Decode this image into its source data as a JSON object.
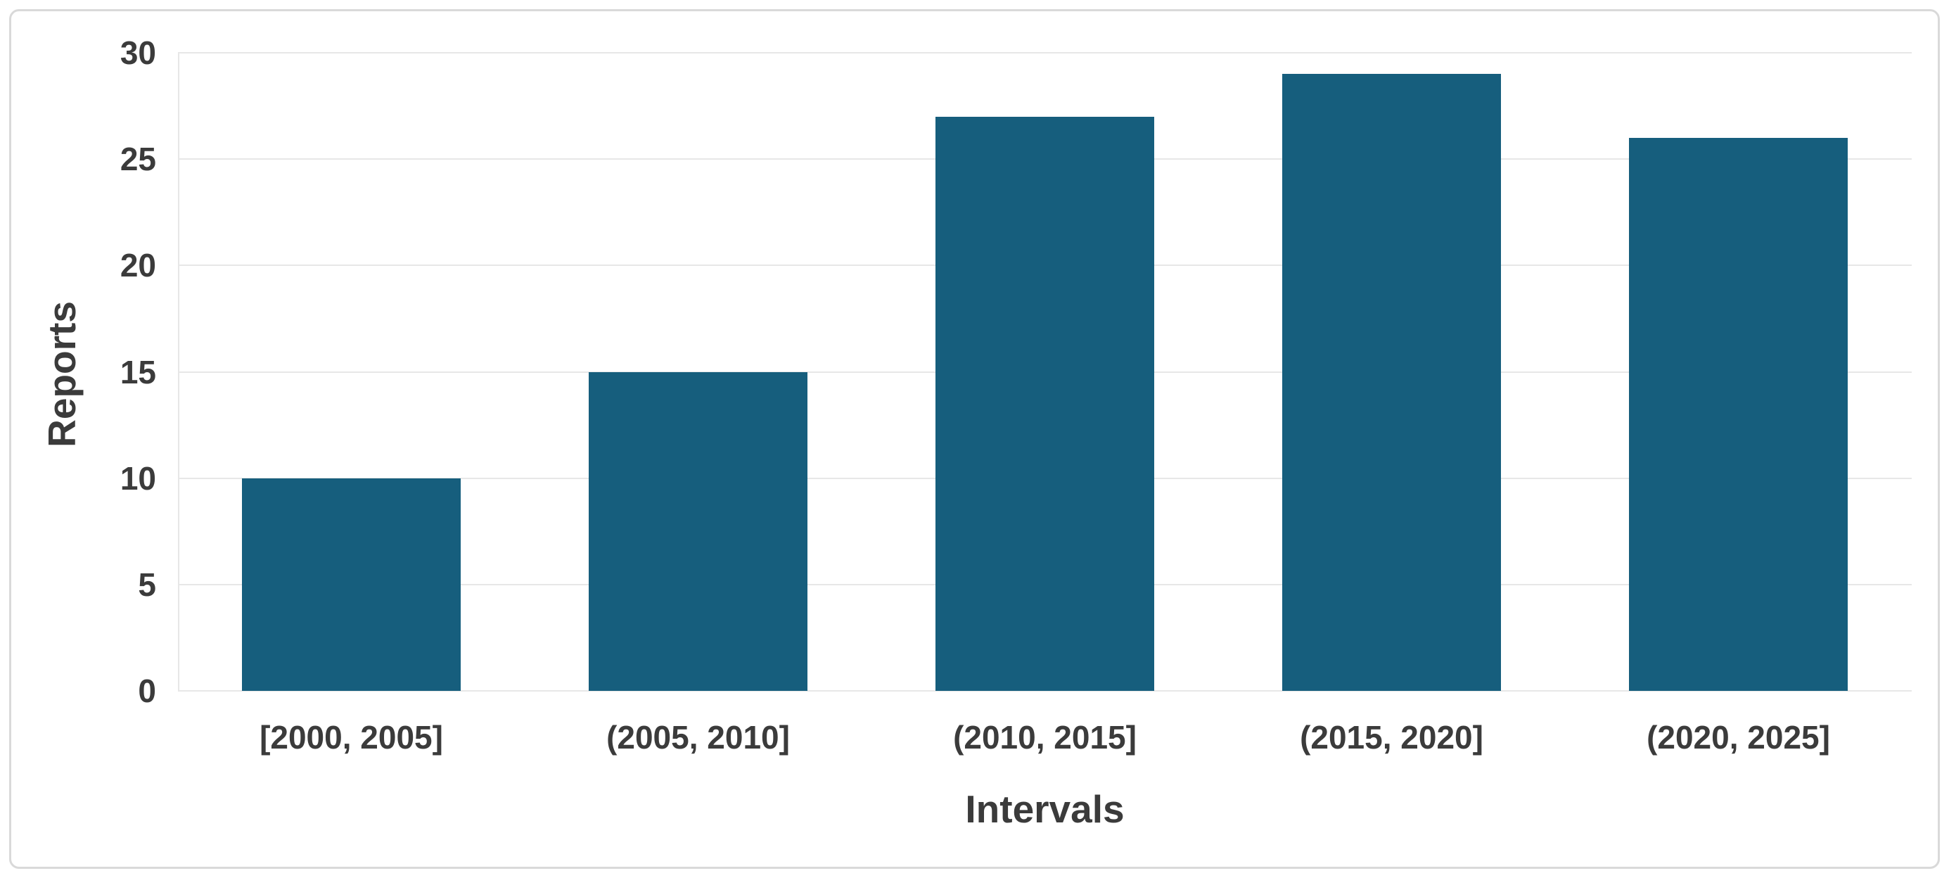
{
  "chart_data": {
    "type": "bar",
    "categories": [
      "[2000, 2005]",
      "(2005, 2010]",
      "(2010, 2015]",
      "(2015, 2020]",
      "(2020, 2025]"
    ],
    "values": [
      10,
      15,
      27,
      29,
      26
    ],
    "title": "",
    "xlabel": "Intervals",
    "ylabel": "Reports",
    "ylim": [
      0,
      30
    ],
    "yticks": [
      0,
      5,
      10,
      15,
      20,
      25,
      30
    ],
    "grid": true,
    "legend_position": "none",
    "bar_width_fraction": 0.63
  },
  "colors": {
    "bar": "#165e7d",
    "gridline": "#e7e7e7",
    "text": "#3b3b3b",
    "frame_border": "#d9d9d9",
    "background": "#ffffff"
  }
}
